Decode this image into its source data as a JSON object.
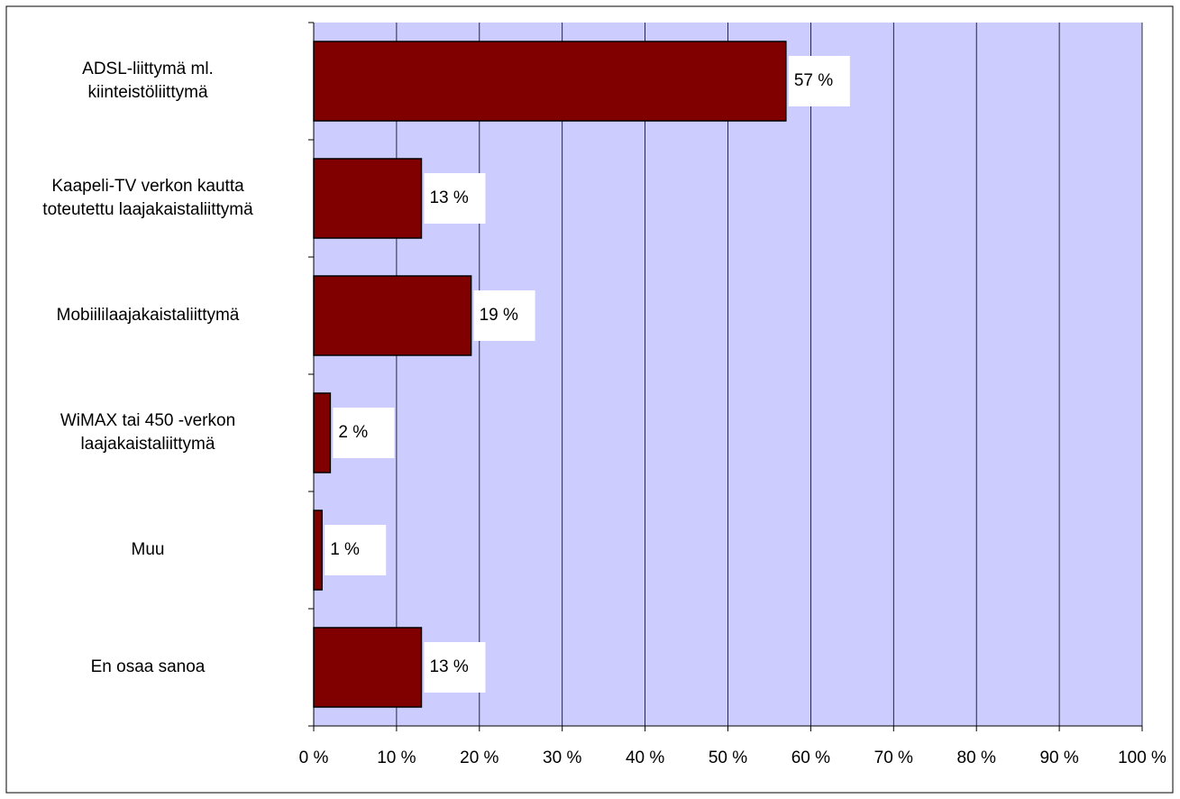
{
  "chart_data": {
    "type": "bar",
    "orientation": "horizontal",
    "categories": [
      "ADSL-liittymä ml.\nkiinteistöliittymä",
      "Kaapeli-TV verkon kautta\ntoteutettu laajakaistaliittymä",
      "Mobiililaajakaistaliittymä",
      "WiMAX tai 450 -verkon\nlaajakaistaliittymä",
      "Muu",
      "En osaa sanoa"
    ],
    "values": [
      57,
      13,
      19,
      2,
      1,
      13
    ],
    "value_labels": [
      "57 %",
      "13 %",
      "19 %",
      "2 %",
      "1 %",
      "13 %"
    ],
    "color": "#800000",
    "plot_background": "#ccccff",
    "xlim": [
      0,
      100
    ],
    "xticks": [
      {
        "value": 0,
        "label": "0 %"
      },
      {
        "value": 10,
        "label": "10 %"
      },
      {
        "value": 20,
        "label": "20 %"
      },
      {
        "value": 30,
        "label": "30 %"
      },
      {
        "value": 40,
        "label": "40 %"
      },
      {
        "value": 50,
        "label": "50 %"
      },
      {
        "value": 60,
        "label": "60 %"
      },
      {
        "value": 70,
        "label": "70 %"
      },
      {
        "value": 80,
        "label": "80 %"
      },
      {
        "value": 90,
        "label": "90 %"
      },
      {
        "value": 100,
        "label": "100 %"
      }
    ],
    "grid": true
  }
}
